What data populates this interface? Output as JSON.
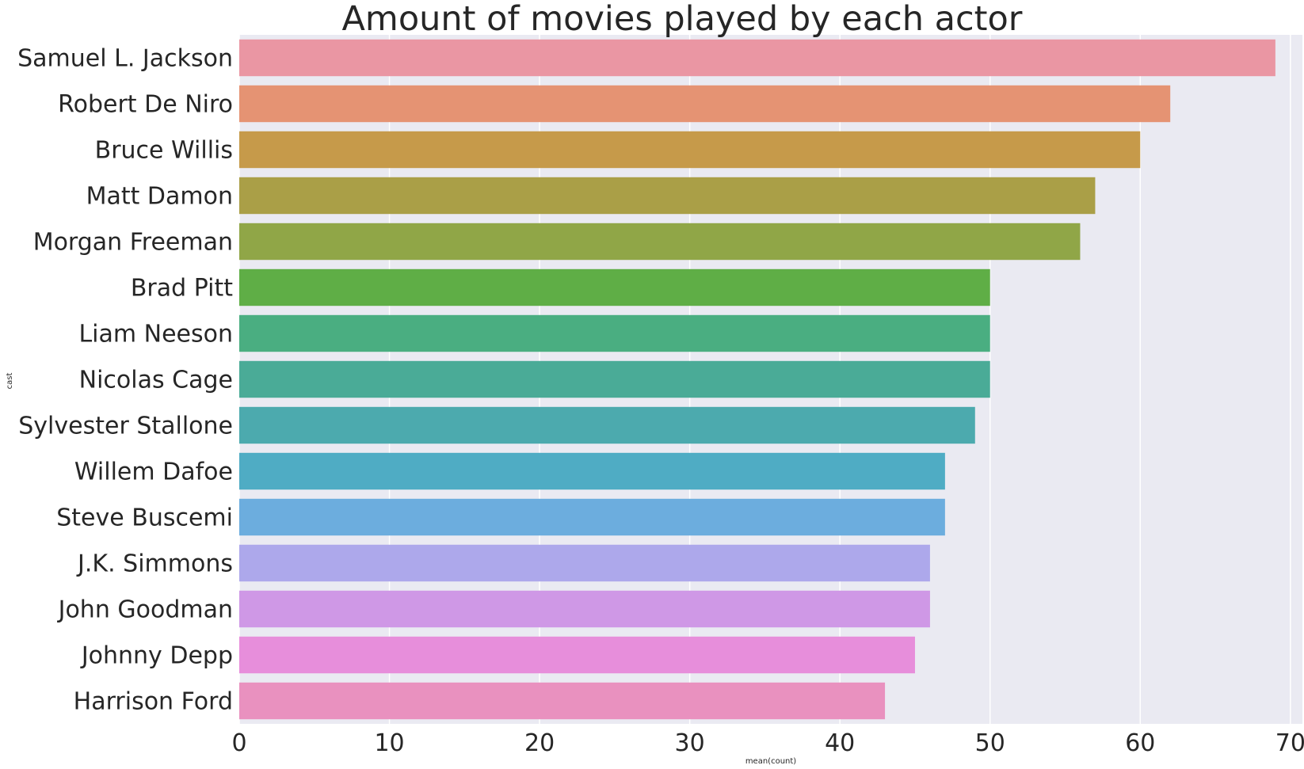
{
  "chart_data": {
    "type": "bar",
    "orientation": "horizontal",
    "title": "Amount of movies played by each actor",
    "xlabel": "mean(count)",
    "ylabel": "cast",
    "categories": [
      "Samuel L. Jackson",
      "Robert De Niro",
      "Bruce Willis",
      "Matt Damon",
      "Morgan Freeman",
      "Brad Pitt",
      "Liam Neeson",
      "Nicolas Cage",
      "Sylvester Stallone",
      "Willem Dafoe",
      "Steve Buscemi",
      "J.K. Simmons",
      "John Goodman",
      "Johnny Depp",
      "Harrison Ford"
    ],
    "values": [
      69,
      62,
      60,
      57,
      56,
      50,
      50,
      50,
      49,
      47,
      47,
      46,
      46,
      45,
      43
    ],
    "colors": [
      "#ea96a3",
      "#e59373",
      "#c69a4a",
      "#aa9f47",
      "#90a647",
      "#5fae46",
      "#4aae81",
      "#4aab97",
      "#4caaae",
      "#4facc4",
      "#6cadde",
      "#ada8eb",
      "#cf98e6",
      "#e78edb",
      "#e991bf"
    ],
    "xlim": [
      0,
      70.8
    ],
    "xticks": [
      0,
      10,
      20,
      30,
      40,
      50,
      60,
      70
    ],
    "grid": true,
    "background": "#eaeaf2"
  }
}
